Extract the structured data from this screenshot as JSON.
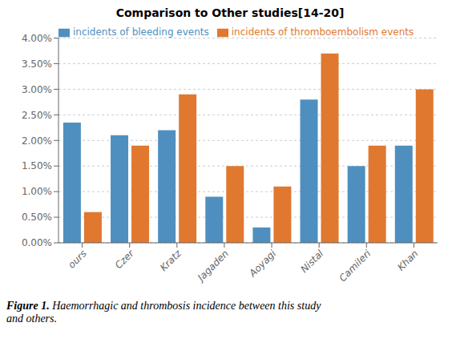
{
  "chart_data": {
    "type": "bar",
    "title": "Comparison to Other studies[14-20]",
    "categories": [
      "ours",
      "Czer",
      "Kratz",
      "Jagaden",
      "Aoyagi",
      "Nistal",
      "Camileri",
      "Khan"
    ],
    "series": [
      {
        "name": "incidents of bleeding events",
        "color": "#4f8fc0",
        "values": [
          0.0235,
          0.021,
          0.022,
          0.009,
          0.003,
          0.028,
          0.015,
          0.019
        ]
      },
      {
        "name": "incidents of thromboembolism events",
        "color": "#e07830",
        "values": [
          0.006,
          0.019,
          0.029,
          0.015,
          0.011,
          0.037,
          0.019,
          0.03
        ]
      }
    ],
    "ylim": [
      0,
      0.04
    ],
    "yticks": [
      {
        "value": 0,
        "label": "0.00%"
      },
      {
        "value": 0.005,
        "label": "0.50%"
      },
      {
        "value": 0.01,
        "label": "1.00%"
      },
      {
        "value": 0.015,
        "label": "1.50%"
      },
      {
        "value": 0.02,
        "label": "2.00%"
      },
      {
        "value": 0.025,
        "label": "2.50%"
      },
      {
        "value": 0.03,
        "label": "3.00%"
      },
      {
        "value": 0.035,
        "label": "3.50%"
      },
      {
        "value": 0.04,
        "label": "4.00%"
      }
    ],
    "grid": true,
    "legend": "upper left",
    "annotations": [
      "Figure 1.",
      "Haemorrhagic and thrombosis incidence between this study\nand others."
    ]
  }
}
